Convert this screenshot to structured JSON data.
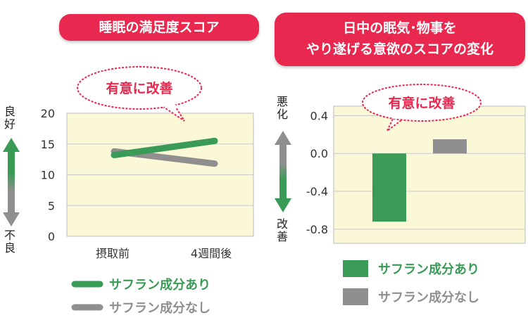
{
  "left_title": "睡眠の満足度スコア",
  "right_title_line1": "日中の眠気･物事を",
  "right_title_line2": "やり遂げる意欲のスコアの変化",
  "left_bubble": "有意に改善",
  "right_bubble": "有意に改善",
  "left_axis_top": "良好",
  "left_axis_bottom": "不良",
  "right_axis_top": "悪化",
  "right_axis_bottom": "改善",
  "colors": {
    "green": "#3a9b57",
    "gray": "#8f8f8f",
    "plot_bg": "#fbf8d7",
    "pill": "#e8284f",
    "bubble": "#e8284f"
  },
  "chart_data": [
    {
      "type": "line",
      "categories": [
        "摂取前",
        "4週間後"
      ],
      "yticks": [
        "0",
        "5",
        "10",
        "15",
        "20"
      ],
      "ylim": [
        0,
        20
      ],
      "series": [
        {
          "name": "サフラン成分あり",
          "values": [
            13.2,
            15.5
          ]
        },
        {
          "name": "サフラン成分なし",
          "values": [
            13.8,
            11.8
          ]
        }
      ],
      "legend": "bottom"
    },
    {
      "type": "bar",
      "yticks": [
        "0.4",
        "0.0",
        "-0.4",
        "-0.8"
      ],
      "ylim": [
        -0.95,
        0.5
      ],
      "series": [
        {
          "name": "サフラン成分あり",
          "values": [
            -0.72
          ]
        },
        {
          "name": "サフラン成分なし",
          "values": [
            0.15
          ]
        }
      ],
      "legend": "bottom"
    }
  ]
}
